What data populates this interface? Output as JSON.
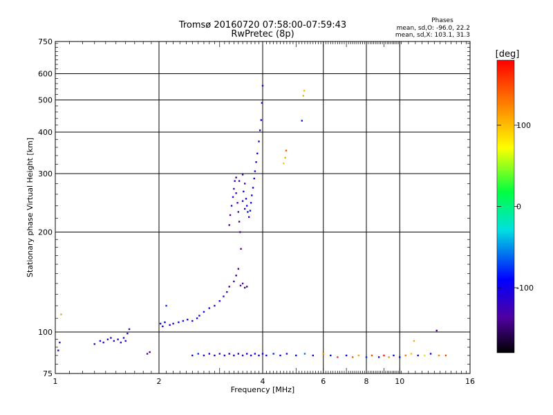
{
  "title_line1": "Tromsø 20160720 07:58:00-07:59:43",
  "title_line2": "RwPretec (8p)",
  "stats": {
    "heading": "Phases",
    "line_o": "mean, sd,O: -96.0, 22.2",
    "line_x": "mean, sd,X: 103.1, 31.3"
  },
  "colorbar": {
    "label": "[deg]",
    "ticks": [
      "100",
      "0",
      "-100"
    ],
    "tick_values": [
      100,
      0,
      -100
    ],
    "range": [
      -180,
      180
    ]
  },
  "chart_data": {
    "type": "scatter",
    "title": "Tromsø 20160720 07:58:00-07:59:43",
    "subtitle": "RwPretec (8p)",
    "xlabel": "Frequency [MHz]",
    "ylabel": "Stationary phase Virtual Height [km]",
    "x_scale": "log",
    "y_scale": "log",
    "xlim": [
      1,
      16
    ],
    "ylim": [
      75,
      750
    ],
    "x_ticks": [
      "1",
      "2",
      "4",
      "6",
      "8",
      "10",
      "16"
    ],
    "x_tick_values": [
      1,
      2,
      4,
      6,
      8,
      10,
      16
    ],
    "y_ticks": [
      "75",
      "100",
      "200",
      "300",
      "400",
      "500",
      "600",
      "750"
    ],
    "y_tick_values": [
      75,
      100,
      200,
      300,
      400,
      500,
      600,
      750
    ],
    "grid": true,
    "color_scale": "phase in degrees (-180 to 180, rainbow)",
    "points": [
      [
        1.02,
        88,
        -110
      ],
      [
        1.03,
        93,
        -115
      ],
      [
        1.04,
        113,
        110
      ],
      [
        1.3,
        92,
        -125
      ],
      [
        1.35,
        94,
        -105
      ],
      [
        1.38,
        93,
        -115
      ],
      [
        1.42,
        95,
        -110
      ],
      [
        1.45,
        96,
        -105
      ],
      [
        1.48,
        94,
        -120
      ],
      [
        1.52,
        95,
        -110
      ],
      [
        1.55,
        93,
        -115
      ],
      [
        1.58,
        96,
        -105
      ],
      [
        1.6,
        94,
        -110
      ],
      [
        1.62,
        99,
        -115
      ],
      [
        1.64,
        102,
        -120
      ],
      [
        1.85,
        86,
        -135
      ],
      [
        1.88,
        87,
        -150
      ],
      [
        2.02,
        106,
        -100
      ],
      [
        2.05,
        104,
        -110
      ],
      [
        2.08,
        107,
        -95
      ],
      [
        2.1,
        120,
        -80
      ],
      [
        2.15,
        105,
        -100
      ],
      [
        2.2,
        106,
        -110
      ],
      [
        2.28,
        107,
        -95
      ],
      [
        2.35,
        108,
        -100
      ],
      [
        2.42,
        109,
        -105
      ],
      [
        2.5,
        108,
        -100
      ],
      [
        2.58,
        110,
        -95
      ],
      [
        2.62,
        112,
        -100
      ],
      [
        2.7,
        115,
        -95
      ],
      [
        2.8,
        118,
        -110
      ],
      [
        2.9,
        120,
        -100
      ],
      [
        3.0,
        124,
        -105
      ],
      [
        3.08,
        128,
        -115
      ],
      [
        3.15,
        132,
        -120
      ],
      [
        3.2,
        137,
        -130
      ],
      [
        3.3,
        142,
        -140
      ],
      [
        3.35,
        148,
        -150
      ],
      [
        3.4,
        155,
        -145
      ],
      [
        3.45,
        138,
        -140
      ],
      [
        3.5,
        140,
        -130
      ],
      [
        3.55,
        136,
        -150
      ],
      [
        3.6,
        137,
        -145
      ],
      [
        3.2,
        210,
        -140
      ],
      [
        3.22,
        225,
        -130
      ],
      [
        3.25,
        240,
        -120
      ],
      [
        3.28,
        255,
        -110
      ],
      [
        3.3,
        270,
        -125
      ],
      [
        3.32,
        285,
        -115
      ],
      [
        3.35,
        262,
        -130
      ],
      [
        3.38,
        245,
        -140
      ],
      [
        3.4,
        230,
        -120
      ],
      [
        3.42,
        215,
        -150
      ],
      [
        3.44,
        200,
        -135
      ],
      [
        3.46,
        178,
        -140
      ],
      [
        3.5,
        248,
        -110
      ],
      [
        3.52,
        265,
        -100
      ],
      [
        3.55,
        235,
        -105
      ],
      [
        3.58,
        252,
        -95
      ],
      [
        3.6,
        240,
        -110
      ],
      [
        3.62,
        230,
        -100
      ],
      [
        3.65,
        222,
        -115
      ],
      [
        3.68,
        232,
        -90
      ],
      [
        3.7,
        245,
        -105
      ],
      [
        3.72,
        258,
        -100
      ],
      [
        3.75,
        272,
        -95
      ],
      [
        3.78,
        290,
        -100
      ],
      [
        3.8,
        305,
        -105
      ],
      [
        3.83,
        325,
        -95
      ],
      [
        3.86,
        345,
        -110
      ],
      [
        3.9,
        375,
        -100
      ],
      [
        3.93,
        405,
        -105
      ],
      [
        3.96,
        435,
        -110
      ],
      [
        3.98,
        490,
        -115
      ],
      [
        4.0,
        552,
        -110
      ],
      [
        3.35,
        292,
        -150
      ],
      [
        3.42,
        285,
        -110
      ],
      [
        3.5,
        298,
        -120
      ],
      [
        3.55,
        280,
        -130
      ],
      [
        4.6,
        322,
        95
      ],
      [
        4.65,
        335,
        110
      ],
      [
        4.68,
        352,
        145
      ],
      [
        5.2,
        433,
        -85
      ],
      [
        5.25,
        515,
        105
      ],
      [
        5.28,
        533,
        100
      ],
      [
        2.5,
        85,
        -100
      ],
      [
        2.6,
        86,
        -80
      ],
      [
        2.7,
        85,
        -110
      ],
      [
        2.8,
        86,
        -95
      ],
      [
        2.9,
        85,
        -100
      ],
      [
        3.0,
        86,
        -120
      ],
      [
        3.1,
        85,
        -105
      ],
      [
        3.2,
        86,
        -95
      ],
      [
        3.3,
        85,
        -110
      ],
      [
        3.4,
        86,
        -100
      ],
      [
        3.5,
        85,
        -115
      ],
      [
        3.6,
        86,
        -90
      ],
      [
        3.7,
        85,
        -105
      ],
      [
        3.8,
        86,
        -100
      ],
      [
        3.9,
        85,
        -110
      ],
      [
        4.0,
        86,
        -95
      ],
      [
        4.1,
        85,
        -100
      ],
      [
        4.3,
        86,
        -80
      ],
      [
        4.5,
        85,
        -95
      ],
      [
        4.7,
        86,
        -100
      ],
      [
        5.0,
        85,
        -90
      ],
      [
        5.3,
        86,
        -60
      ],
      [
        5.6,
        85,
        -100
      ],
      [
        6.0,
        86,
        120
      ],
      [
        6.3,
        85,
        -90
      ],
      [
        6.6,
        84,
        160
      ],
      [
        7.0,
        85,
        -100
      ],
      [
        7.3,
        84,
        140
      ],
      [
        7.6,
        85,
        110
      ],
      [
        8.0,
        84,
        -80
      ],
      [
        8.3,
        85,
        150
      ],
      [
        8.7,
        84,
        -100
      ],
      [
        9.0,
        85,
        170
      ],
      [
        9.3,
        84,
        120
      ],
      [
        9.6,
        85,
        -95
      ],
      [
        10.0,
        84,
        -90
      ],
      [
        10.4,
        85,
        130
      ],
      [
        10.8,
        86,
        100
      ],
      [
        11.3,
        85,
        -110
      ],
      [
        11.8,
        85,
        60
      ],
      [
        12.3,
        86,
        -100
      ],
      [
        13.0,
        85,
        120
      ],
      [
        13.6,
        85,
        150
      ],
      [
        11.0,
        94,
        110
      ],
      [
        12.8,
        101,
        -150
      ]
    ]
  }
}
